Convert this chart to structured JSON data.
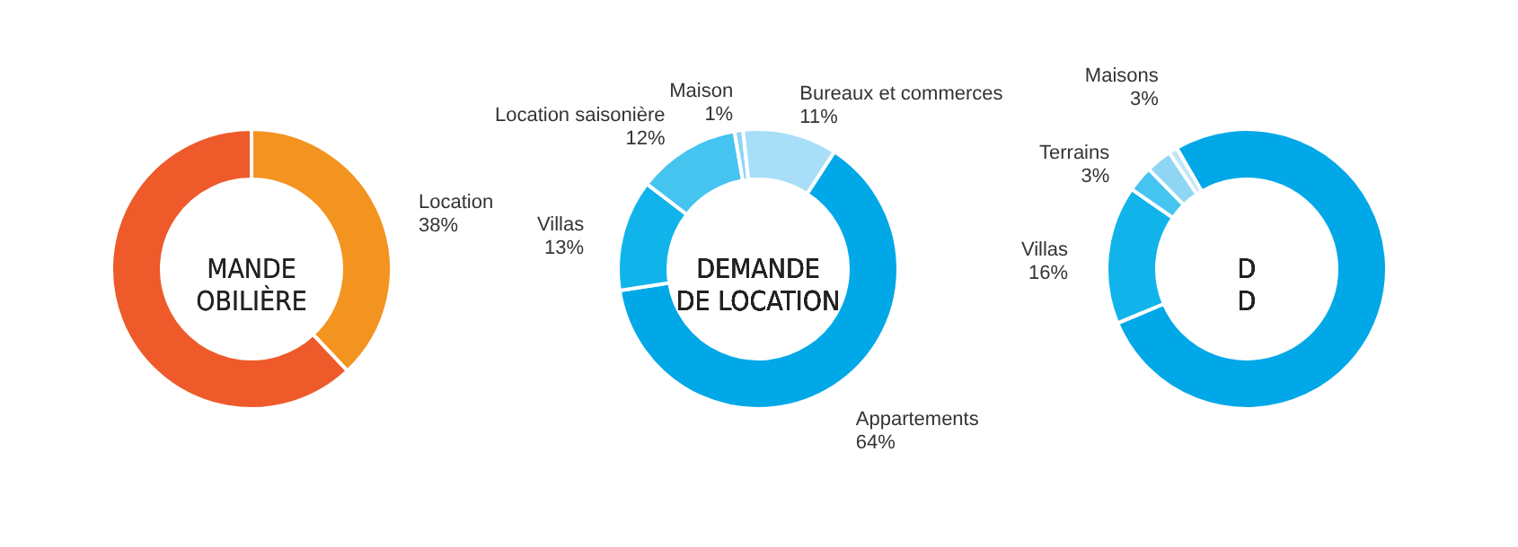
{
  "chart_data": [
    {
      "type": "donut",
      "title": "MANDE\nOBILIÈRE",
      "categories": [
        "Location",
        null
      ],
      "values": [
        38,
        62
      ],
      "colors": [
        "#f39320",
        "#ee5a2a"
      ],
      "value_labels": [
        "38%",
        null
      ]
    },
    {
      "type": "donut",
      "title": "DEMANDE\nDE LOCATION",
      "categories": [
        "Appartements",
        "Villas",
        "Location saisonière",
        "Maison",
        "Bureaux et commerces"
      ],
      "values": [
        64,
        13,
        12,
        1,
        11
      ],
      "colors": [
        "#00a8e8",
        "#10b4ea",
        "#45c4f0",
        "#8fd6f5",
        "#a8def7"
      ],
      "value_labels": [
        "64%",
        "13%",
        "12%",
        "1%",
        "11%"
      ]
    },
    {
      "type": "donut",
      "title": "D\nD",
      "categories": [
        null,
        "Villas",
        "Terrains",
        "Maisons",
        null
      ],
      "values": [
        77,
        16,
        3,
        3,
        1
      ],
      "colors": [
        "#00a8e8",
        "#10b4ea",
        "#45c4f0",
        "#8fd6f5",
        "#c0e6f8"
      ],
      "value_labels": [
        null,
        "16%",
        "3%",
        "3%",
        null
      ]
    }
  ]
}
